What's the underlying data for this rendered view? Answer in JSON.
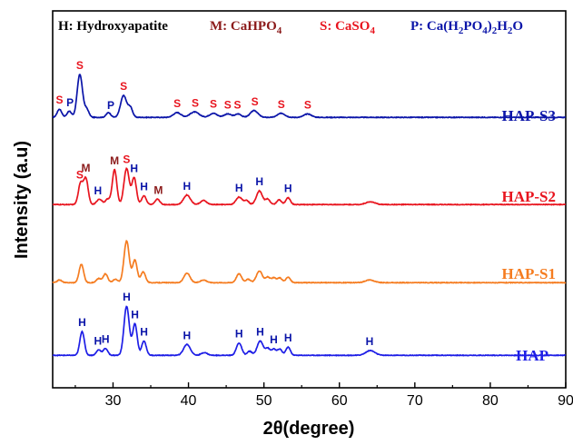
{
  "chart_data": {
    "type": "line",
    "xlabel": "2θ(degree)",
    "ylabel": "Intensity (a.u)",
    "xlim": [
      22,
      90
    ],
    "xticks": [
      30,
      40,
      50,
      60,
      70,
      80,
      90
    ],
    "yticks_shown": false,
    "grid": false,
    "legend": {
      "position": "top",
      "entries": [
        {
          "symbol": "H",
          "text": "Hydroxyapatite",
          "color": "#000000"
        },
        {
          "symbol": "M",
          "text": "CaHPO",
          "sub": "4",
          "color": "#8b1a1a"
        },
        {
          "symbol": "S",
          "text": "CaSO",
          "sub": "4",
          "color": "#e8141e"
        },
        {
          "symbol": "P",
          "text": "Ca(H",
          "sub": "2",
          "text2": "PO",
          "sub2": "4",
          "text3": ")",
          "sub3": "2",
          "text4": "H",
          "sub4": "2",
          "text5": "O",
          "color": "#0a14a8"
        }
      ]
    },
    "series": [
      {
        "name": "HAP-S3",
        "color": "#0a14a8",
        "baseline": 0.9,
        "noise": 0.045,
        "peaks": [
          [
            22.9,
            1.2,
            0.3
          ],
          [
            24.2,
            0.9,
            0.3
          ],
          [
            25.6,
            6.3,
            0.35
          ],
          [
            26.5,
            1.2,
            0.3
          ],
          [
            29.4,
            0.7,
            0.3
          ],
          [
            31.4,
            3.2,
            0.4
          ],
          [
            32.3,
            1.4,
            0.3
          ],
          [
            38.5,
            0.7,
            0.5
          ],
          [
            40.8,
            0.8,
            0.6
          ],
          [
            43.3,
            0.6,
            0.5
          ],
          [
            45.2,
            0.5,
            0.5
          ],
          [
            46.6,
            0.5,
            0.4
          ],
          [
            48.7,
            1.0,
            0.5
          ],
          [
            52.3,
            0.6,
            0.5
          ],
          [
            55.8,
            0.5,
            0.5
          ]
        ],
        "markers": [
          {
            "x": 22.9,
            "label": "S",
            "color": "#e8141e"
          },
          {
            "x": 24.3,
            "label": "P",
            "color": "#0a14a8"
          },
          {
            "x": 25.6,
            "label": "S",
            "color": "#e8141e"
          },
          {
            "x": 29.7,
            "label": "P",
            "color": "#0a14a8"
          },
          {
            "x": 31.4,
            "label": "S",
            "color": "#e8141e"
          },
          {
            "x": 38.5,
            "label": "S",
            "color": "#e8141e"
          },
          {
            "x": 40.9,
            "label": "S",
            "color": "#e8141e"
          },
          {
            "x": 43.3,
            "label": "S",
            "color": "#e8141e"
          },
          {
            "x": 45.2,
            "label": "S",
            "color": "#e8141e"
          },
          {
            "x": 46.5,
            "label": "S",
            "color": "#e8141e"
          },
          {
            "x": 48.8,
            "label": "S",
            "color": "#e8141e"
          },
          {
            "x": 52.3,
            "label": "S",
            "color": "#e8141e"
          },
          {
            "x": 55.8,
            "label": "S",
            "color": "#e8141e"
          }
        ]
      },
      {
        "name": "HAP-S2",
        "color": "#e8141e",
        "baseline": 0.9,
        "noise": 0.045,
        "peaks": [
          [
            25.7,
            3.1,
            0.3
          ],
          [
            26.4,
            3.8,
            0.3
          ],
          [
            28.2,
            0.8,
            0.35
          ],
          [
            29.3,
            0.8,
            0.3
          ],
          [
            30.2,
            5.1,
            0.3
          ],
          [
            31.8,
            5.3,
            0.35
          ],
          [
            32.8,
            3.9,
            0.3
          ],
          [
            34.1,
            1.3,
            0.3
          ],
          [
            35.9,
            0.8,
            0.3
          ],
          [
            39.8,
            1.4,
            0.45
          ],
          [
            42.0,
            0.6,
            0.4
          ],
          [
            46.7,
            1.1,
            0.4
          ],
          [
            47.7,
            0.6,
            0.3
          ],
          [
            49.4,
            2.0,
            0.4
          ],
          [
            50.5,
            0.8,
            0.3
          ],
          [
            52.0,
            0.7,
            0.3
          ],
          [
            53.2,
            1.0,
            0.3
          ],
          [
            64.1,
            0.4,
            0.6
          ]
        ],
        "markers": [
          {
            "x": 25.6,
            "label": "S",
            "color": "#e8141e"
          },
          {
            "x": 26.4,
            "label": "M",
            "color": "#8b1a1a"
          },
          {
            "x": 28.0,
            "label": "H",
            "color": "#0a14a8"
          },
          {
            "x": 30.2,
            "label": "M",
            "color": "#8b1a1a"
          },
          {
            "x": 31.8,
            "label": "S",
            "color": "#e8141e"
          },
          {
            "x": 32.8,
            "label": "H",
            "color": "#0a14a8"
          },
          {
            "x": 34.1,
            "label": "H",
            "color": "#0a14a8"
          },
          {
            "x": 36.0,
            "label": "M",
            "color": "#8b1a1a"
          },
          {
            "x": 39.8,
            "label": "H",
            "color": "#0a14a8"
          },
          {
            "x": 46.7,
            "label": "H",
            "color": "#0a14a8"
          },
          {
            "x": 49.4,
            "label": "H",
            "color": "#0a14a8"
          },
          {
            "x": 53.2,
            "label": "H",
            "color": "#0a14a8"
          }
        ]
      },
      {
        "name": "HAP-S1",
        "color": "#f57c20",
        "baseline": 0.9,
        "noise": 0.045,
        "peaks": [
          [
            22.9,
            0.4,
            0.3
          ],
          [
            25.8,
            2.7,
            0.3
          ],
          [
            28.1,
            0.6,
            0.3
          ],
          [
            29.0,
            1.3,
            0.3
          ],
          [
            30.3,
            0.5,
            0.3
          ],
          [
            31.8,
            6.1,
            0.35
          ],
          [
            32.9,
            3.3,
            0.3
          ],
          [
            34.0,
            1.6,
            0.3
          ],
          [
            39.8,
            1.4,
            0.4
          ],
          [
            42.0,
            0.4,
            0.4
          ],
          [
            46.7,
            1.3,
            0.35
          ],
          [
            47.9,
            0.5,
            0.3
          ],
          [
            49.4,
            1.7,
            0.4
          ],
          [
            50.5,
            0.8,
            0.3
          ],
          [
            51.3,
            0.7,
            0.3
          ],
          [
            52.1,
            0.7,
            0.3
          ],
          [
            53.2,
            0.8,
            0.3
          ],
          [
            64.0,
            0.4,
            0.6
          ]
        ],
        "markers": []
      },
      {
        "name": "HAP",
        "color": "#1e1ee6",
        "baseline": 0.9,
        "noise": 0.045,
        "peaks": [
          [
            25.9,
            3.5,
            0.3
          ],
          [
            28.1,
            0.8,
            0.3
          ],
          [
            29.0,
            1.0,
            0.3
          ],
          [
            31.8,
            7.2,
            0.35
          ],
          [
            32.9,
            4.6,
            0.3
          ],
          [
            34.1,
            2.1,
            0.3
          ],
          [
            39.8,
            1.6,
            0.45
          ],
          [
            42.1,
            0.4,
            0.4
          ],
          [
            46.7,
            1.8,
            0.35
          ],
          [
            48.1,
            0.6,
            0.3
          ],
          [
            49.5,
            2.1,
            0.4
          ],
          [
            50.5,
            1.0,
            0.3
          ],
          [
            51.3,
            0.9,
            0.3
          ],
          [
            52.1,
            0.9,
            0.3
          ],
          [
            53.2,
            1.2,
            0.3
          ],
          [
            64.1,
            0.7,
            0.6
          ]
        ],
        "markers": [
          {
            "x": 25.9,
            "label": "H",
            "color": "#0a14a8"
          },
          {
            "x": 28.0,
            "label": "H",
            "color": "#0a14a8"
          },
          {
            "x": 29.0,
            "label": "H",
            "color": "#0a14a8"
          },
          {
            "x": 31.8,
            "label": "H",
            "color": "#0a14a8"
          },
          {
            "x": 32.9,
            "label": "H",
            "color": "#0a14a8"
          },
          {
            "x": 34.1,
            "label": "H",
            "color": "#0a14a8"
          },
          {
            "x": 39.8,
            "label": "H",
            "color": "#0a14a8"
          },
          {
            "x": 46.7,
            "label": "H",
            "color": "#0a14a8"
          },
          {
            "x": 49.5,
            "label": "H",
            "color": "#0a14a8"
          },
          {
            "x": 51.3,
            "label": "H",
            "color": "#0a14a8"
          },
          {
            "x": 53.2,
            "label": "H",
            "color": "#0a14a8"
          },
          {
            "x": 64.0,
            "label": "H",
            "color": "#0a14a8"
          }
        ]
      }
    ]
  }
}
